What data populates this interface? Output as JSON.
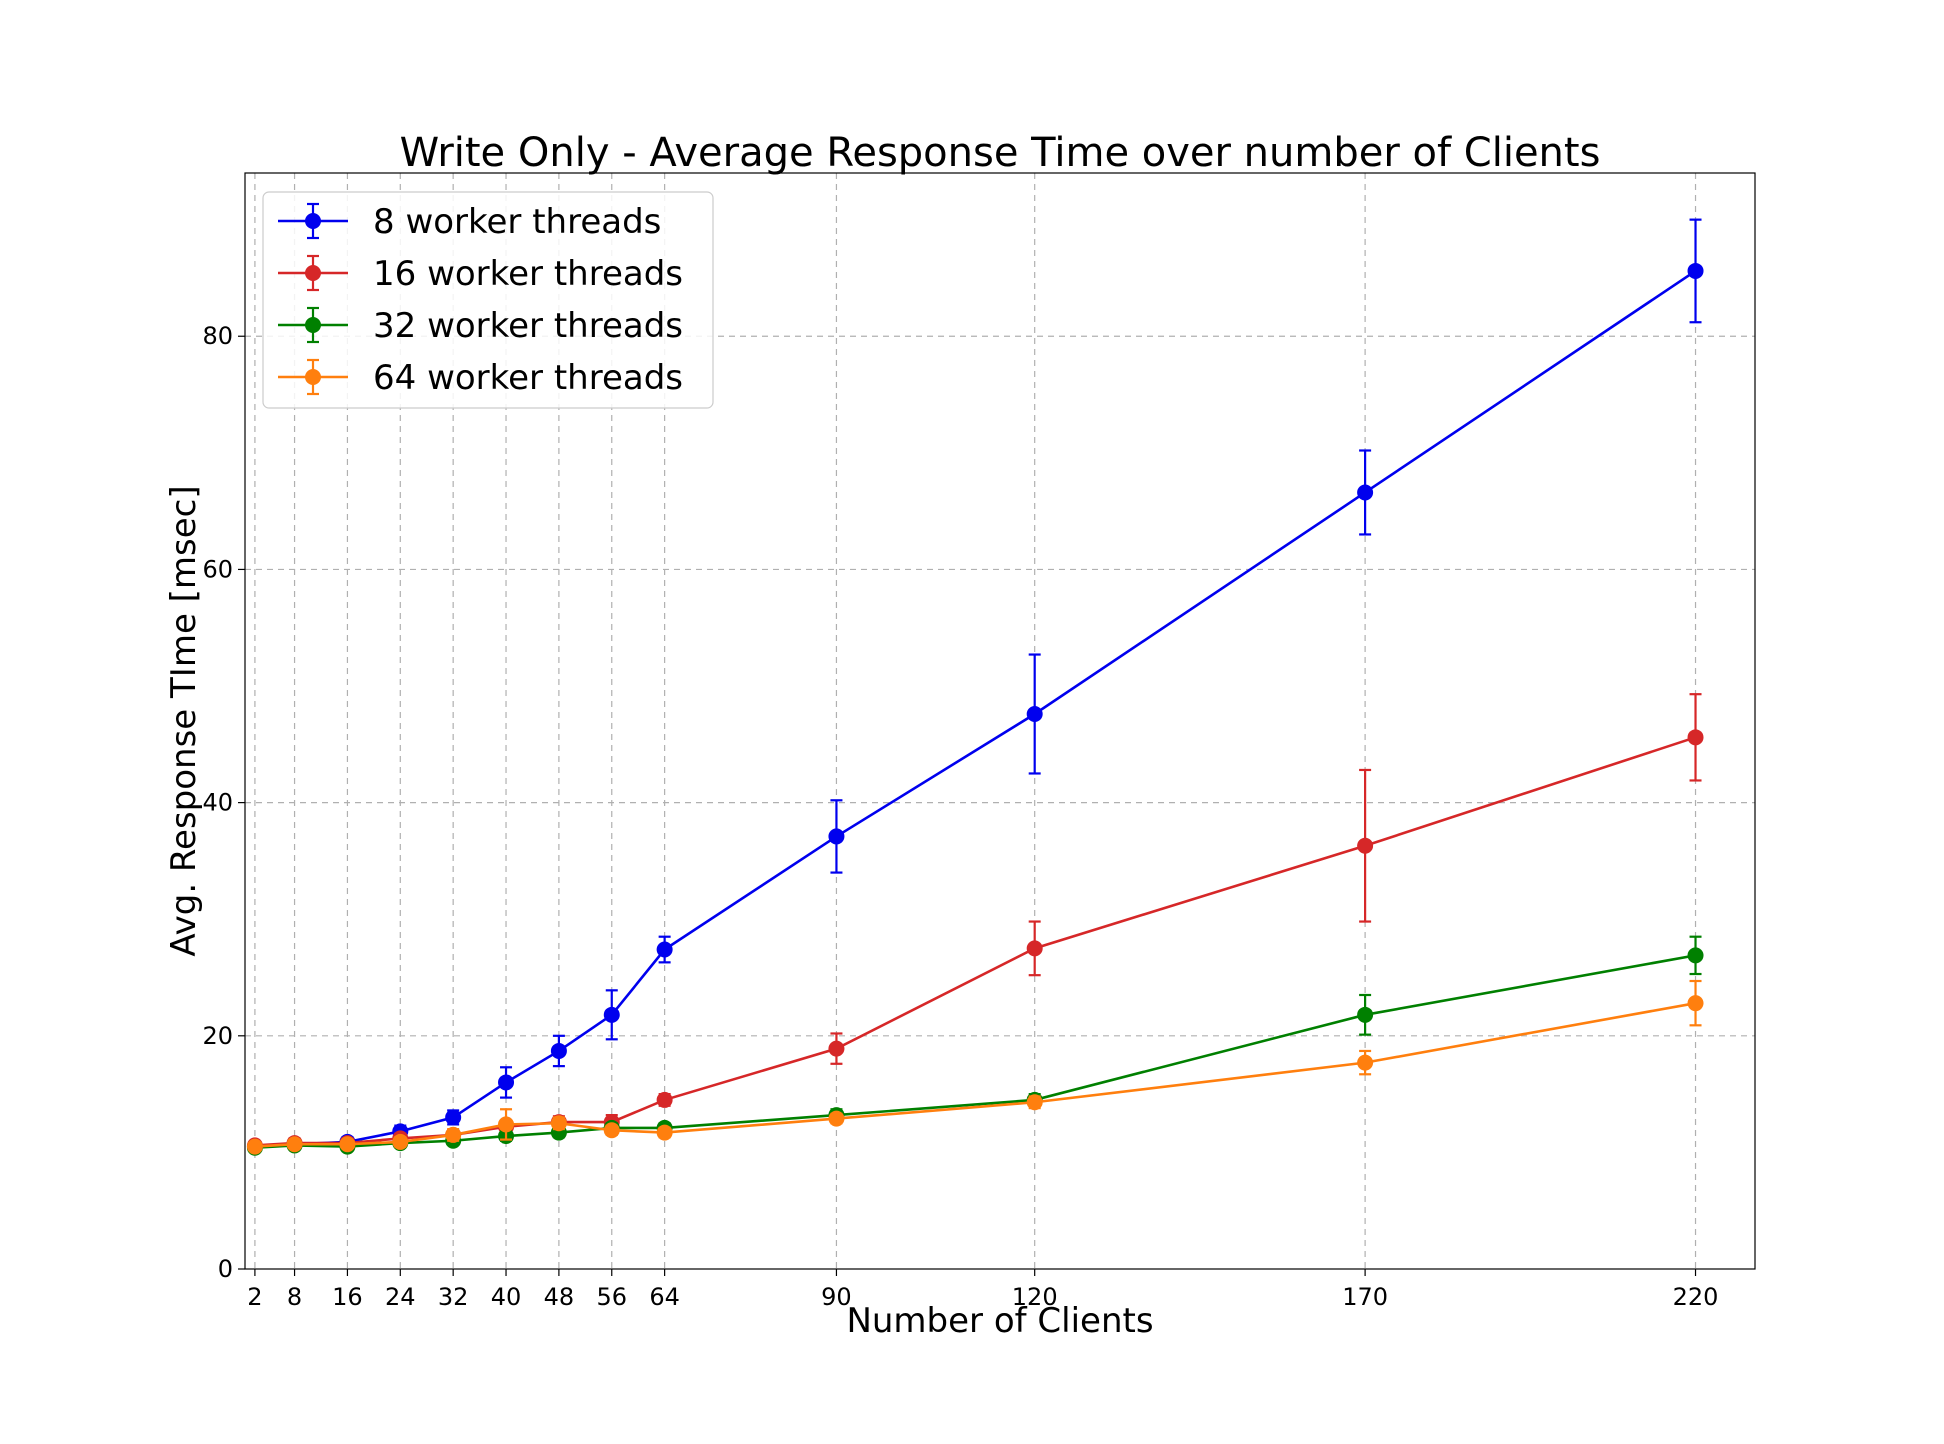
{
  "chart_data": {
    "type": "line",
    "title": "Write Only - Average Response Time over number of Clients",
    "xlabel": "Number of Clients",
    "ylabel": "Avg. Response TIme [msec]",
    "x": [
      2,
      8,
      16,
      24,
      32,
      40,
      48,
      56,
      64,
      90,
      120,
      170,
      220
    ],
    "xticks": [
      "2",
      "8",
      "16",
      "24",
      "32",
      "40",
      "48",
      "56",
      "64",
      "90",
      "120",
      "170",
      "220"
    ],
    "yticks": [
      "0",
      "20",
      "40",
      "60",
      "80"
    ],
    "xlim": [
      0.5,
      229
    ],
    "ylim": [
      0,
      94
    ],
    "grid": true,
    "error_bars": true,
    "legend_position": "top-left",
    "series": [
      {
        "name": "8 worker threads",
        "color": "#0000ee",
        "values": [
          10.5,
          10.7,
          10.9,
          11.8,
          13.0,
          16.0,
          18.7,
          21.8,
          27.4,
          37.1,
          47.6,
          66.6,
          85.6
        ],
        "errors": [
          0.4,
          0.4,
          0.4,
          0.5,
          0.6,
          1.3,
          1.3,
          2.1,
          1.1,
          3.1,
          5.1,
          3.6,
          4.4
        ]
      },
      {
        "name": "16 worker threads",
        "color": "#d62728",
        "values": [
          10.6,
          10.8,
          10.8,
          11.2,
          11.5,
          12.2,
          12.6,
          12.6,
          14.5,
          18.9,
          27.5,
          36.3,
          45.6
        ],
        "errors": [
          0.3,
          0.4,
          0.4,
          0.4,
          0.4,
          0.5,
          0.5,
          0.6,
          0.5,
          1.3,
          2.3,
          6.5,
          3.7
        ]
      },
      {
        "name": "32 worker threads",
        "color": "#008000",
        "values": [
          10.4,
          10.6,
          10.5,
          10.8,
          11.0,
          11.4,
          11.7,
          12.1,
          12.1,
          13.2,
          14.5,
          21.8,
          26.9
        ],
        "errors": [
          0.3,
          0.3,
          0.3,
          0.3,
          0.3,
          0.4,
          0.4,
          0.4,
          0.4,
          0.5,
          0.5,
          1.7,
          1.6
        ]
      },
      {
        "name": "64 worker threads",
        "color": "#ff7f0e",
        "values": [
          10.5,
          10.7,
          10.7,
          10.9,
          11.5,
          12.4,
          12.5,
          11.9,
          11.7,
          12.9,
          14.3,
          17.7,
          22.8
        ],
        "errors": [
          0.3,
          0.3,
          0.3,
          0.4,
          0.5,
          1.3,
          0.5,
          0.4,
          0.4,
          0.4,
          0.5,
          1.0,
          1.9
        ]
      }
    ]
  }
}
